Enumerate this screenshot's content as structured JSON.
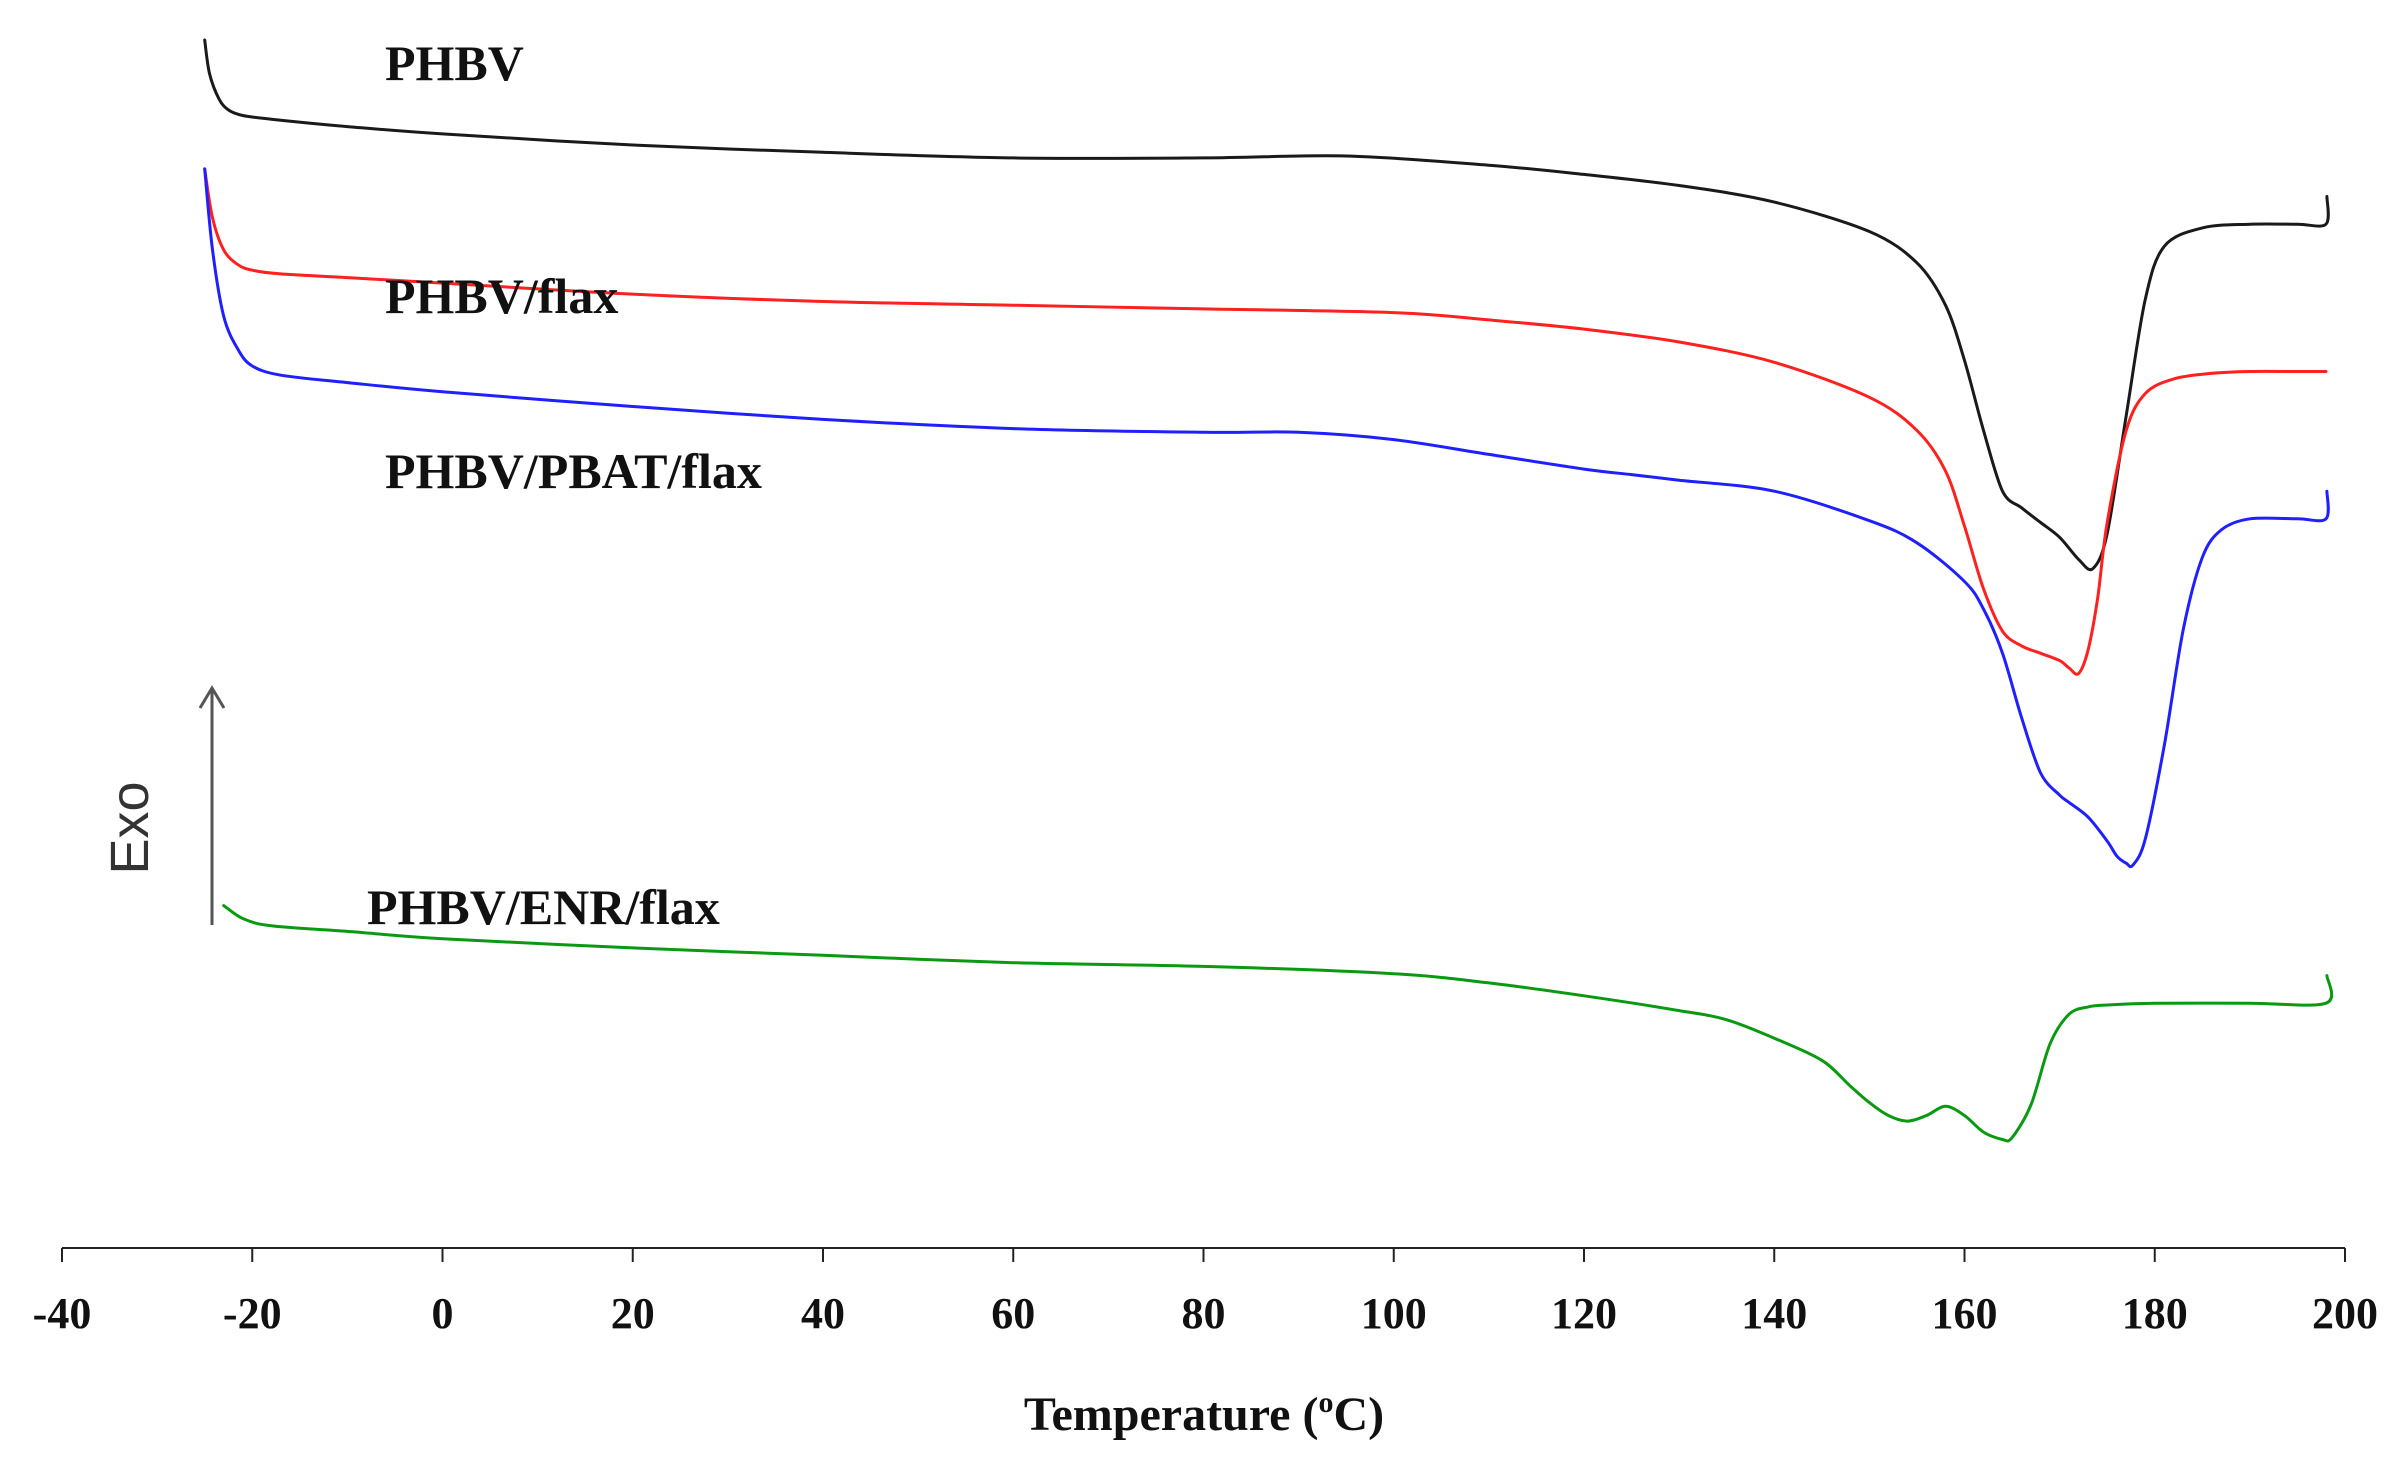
{
  "chart_data": {
    "type": "line",
    "title": "",
    "xlabel": "Temperature (°C)",
    "xlabel_main": "Temperature (",
    "xlabel_degree": "o",
    "xlabel_end": "C)",
    "ylabel": "",
    "xlim": [
      -40,
      200
    ],
    "xticks": [
      -40,
      -20,
      0,
      20,
      40,
      60,
      80,
      100,
      120,
      140,
      160,
      180,
      200
    ],
    "grid": false,
    "y_units": "relative heat flow (Exo up, arbitrary units)",
    "annotations": [
      {
        "text": "Exo",
        "kind": "arrow-up"
      }
    ],
    "series": [
      {
        "name": "PHBV",
        "color": "#1a1a1a",
        "x": [
          -25,
          -24.5,
          -23.5,
          -22.5,
          -21,
          -18,
          -10,
          0,
          20,
          40,
          60,
          80,
          95,
          110,
          120,
          130,
          140,
          150,
          155,
          158,
          160,
          162,
          164,
          166,
          168,
          170,
          172,
          173.5,
          175,
          177,
          179,
          181,
          185,
          190,
          195,
          198,
          198.1
        ],
        "y": [
          60,
          58.2,
          56.8,
          56.2,
          55.9,
          55.7,
          55.3,
          54.9,
          54.3,
          53.9,
          53.6,
          53.6,
          53.7,
          53.2,
          52.7,
          52.1,
          51.2,
          49.6,
          47.9,
          45.6,
          42.6,
          38.8,
          35.5,
          34.6,
          33.8,
          33,
          31.8,
          31.3,
          33.2,
          39.6,
          45.9,
          48.8,
          49.8,
          50,
          50,
          50,
          51.5
        ]
      },
      {
        "name": "PHBV/flax",
        "color": "#ff2020",
        "x": [
          -25,
          -24.2,
          -23,
          -21.5,
          -20,
          -17,
          -10,
          0,
          20,
          40,
          60,
          80,
          100,
          110,
          120,
          130,
          140,
          150,
          155,
          158,
          160,
          162,
          164,
          166,
          168,
          170,
          171,
          172,
          173,
          174,
          175,
          177,
          179,
          182,
          186,
          190,
          195,
          198
        ],
        "y": [
          53,
          50.4,
          48.6,
          47.8,
          47.5,
          47.3,
          47.1,
          46.8,
          46.2,
          45.8,
          45.6,
          45.4,
          45.2,
          44.8,
          44.3,
          43.6,
          42.5,
          40.6,
          38.8,
          36.6,
          33.6,
          30.2,
          27.9,
          27.1,
          26.7,
          26.3,
          25.9,
          25.6,
          26.9,
          29.7,
          33.8,
          38.8,
          40.8,
          41.6,
          41.9,
          42,
          42,
          42
        ]
      },
      {
        "name": "PHBV/PBAT/flax",
        "color": "#1f1fff",
        "x": [
          -25,
          -24.2,
          -23,
          -21.5,
          -20,
          -17,
          -10,
          0,
          20,
          40,
          60,
          80,
          90,
          100,
          110,
          120,
          125,
          130,
          140,
          150,
          155,
          160,
          162,
          164,
          166,
          168,
          170,
          171,
          173,
          175,
          176,
          177,
          177.7,
          179,
          181,
          183,
          185,
          187,
          190,
          195,
          198,
          198.1
        ],
        "y": [
          53,
          48.7,
          45,
          43.2,
          42.3,
          41.8,
          41.4,
          40.9,
          40.1,
          39.4,
          38.9,
          38.7,
          38.7,
          38.3,
          37.5,
          36.7,
          36.4,
          36.1,
          35.5,
          33.9,
          32.7,
          30.6,
          29.1,
          26.7,
          23.2,
          20.2,
          19,
          18.6,
          17.8,
          16.5,
          15.7,
          15.3,
          15.2,
          16.6,
          21.7,
          28,
          31.9,
          33.4,
          34,
          34,
          34,
          35.5
        ]
      },
      {
        "name": "PHBV/ENR/flax",
        "color": "#0a9a12",
        "x": [
          -23,
          -21,
          -18,
          -10,
          0,
          20,
          40,
          60,
          80,
          100,
          110,
          120,
          130,
          135,
          140,
          145,
          148,
          150,
          152,
          154,
          156,
          158,
          160,
          162,
          164,
          165,
          167,
          169,
          171,
          173,
          175,
          180,
          190,
          198,
          198.1
        ],
        "y": [
          13,
          12.3,
          11.9,
          11.6,
          11.2,
          10.7,
          10.3,
          9.9,
          9.7,
          9.3,
          8.8,
          8.1,
          7.3,
          6.8,
          5.8,
          4.6,
          3.2,
          2.3,
          1.6,
          1.3,
          1.6,
          2.1,
          1.6,
          0.7,
          0.3,
          0.4,
          2.2,
          5.5,
          7.1,
          7.5,
          7.6,
          7.7,
          7.7,
          7.7,
          9.2
        ]
      }
    ]
  }
}
